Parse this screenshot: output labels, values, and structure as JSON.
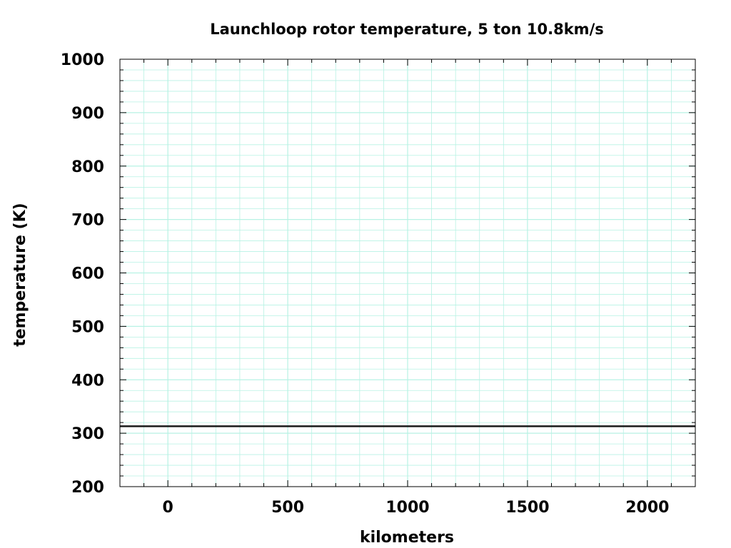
{
  "chart_data": {
    "type": "line",
    "title": "Launchloop rotor temperature, 5 ton  10.8km/s",
    "xlabel": "kilometers",
    "ylabel": "temperature (K)",
    "xlim": [
      -200,
      2200
    ],
    "ylim": [
      200,
      1000
    ],
    "xticks": [
      0,
      500,
      1000,
      1500,
      2000
    ],
    "xtick_labels": [
      "0",
      "500",
      "1000",
      "1500",
      "2000"
    ],
    "yticks": [
      200,
      300,
      400,
      500,
      600,
      700,
      800,
      900,
      1000
    ],
    "ytick_labels": [
      "200",
      "300",
      "400",
      "500",
      "600",
      "700",
      "800",
      "900",
      "1000"
    ],
    "x_minor_step": 100,
    "y_minor_step": 20,
    "grid": true,
    "series": [
      {
        "x": [
          -200,
          2200
        ],
        "y": [
          313,
          313
        ]
      }
    ],
    "colors": {
      "grid": "#b7f2e4",
      "line": "#1a1a1a",
      "frame": "#000000"
    }
  }
}
